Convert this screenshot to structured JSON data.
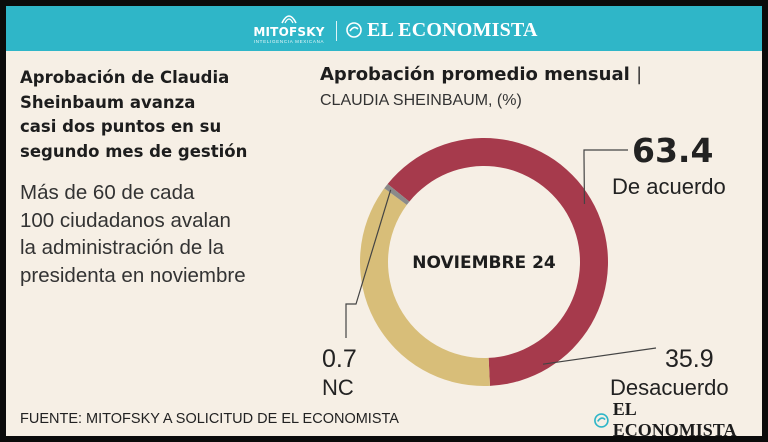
{
  "header": {
    "partner_name": "MITOFSKY",
    "partner_tagline": "INTELIGENCIA MEXICANA",
    "publisher_name": "EL ECONOMISTA"
  },
  "headline": "Aprobación de Claudia\nSheinbaum avanza\ncasi dos puntos en su\nsegundo mes de gestión",
  "subheadline": "Más de 60 de cada\n100 ciudadanos avalan\nla administración de la\npresidenta en noviembre",
  "source": "FUENTE: MITOFSKY A SOLICITUD DE EL ECONOMISTA",
  "footer": {
    "publisher_name": "EL ECONOMISTA"
  },
  "colors": {
    "de_acuerdo": "#a63a4c",
    "desacuerdo": "#d8be79",
    "nc": "#8a8a8a",
    "header_bar": "#2fb6c8",
    "background": "#f6efe5"
  },
  "chart_data": {
    "type": "pie",
    "title": "Aprobación promedio mensual",
    "title_separator": "|",
    "subtitle": "CLAUDIA SHEINBAUM, (%)",
    "center_label": "NOVIEMBRE 24",
    "slices": [
      {
        "key": "de_acuerdo",
        "label": "De acuerdo",
        "value": 63.4,
        "value_text": "63.4"
      },
      {
        "key": "desacuerdo",
        "label": "Desacuerdo",
        "value": 35.9,
        "value_text": "35.9"
      },
      {
        "key": "nc",
        "label": "NC",
        "value": 0.7,
        "value_text": "0.7"
      }
    ]
  }
}
